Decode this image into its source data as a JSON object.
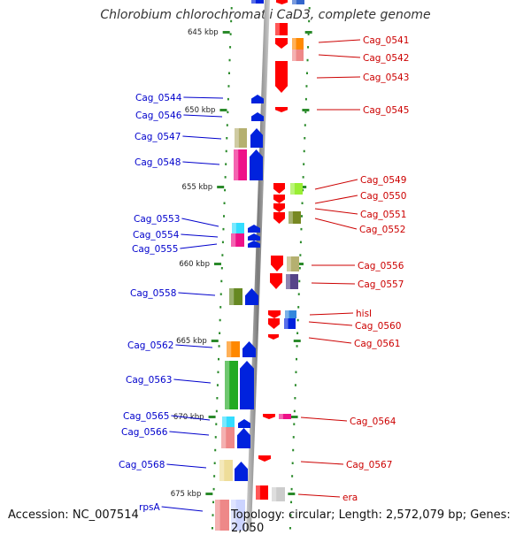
{
  "title": "Chlorobium chlorochromatii CaD3, complete genome",
  "footer": {
    "accession": "Accession: NC_007514",
    "topology": "Topology: circular; Length: 2,572,079 bp; Genes: 2,050"
  },
  "colors": {
    "left_label": "#0000cc",
    "right_label": "#cc0000",
    "axis": "#888888",
    "tick_dots": "#2a8a2a"
  },
  "scale_labels": [
    "645 kbp",
    "650 kbp",
    "655 kbp",
    "660 kbp",
    "665 kbp",
    "670 kbp",
    "675 kbp"
  ],
  "left_genes": [
    "Cag_0544",
    "Cag_0546",
    "Cag_0547",
    "Cag_0548",
    "Cag_0553",
    "Cag_0554",
    "Cag_0555",
    "Cag_0558",
    "Cag_0562",
    "Cag_0563",
    "Cag_0565",
    "Cag_0566",
    "Cag_0568",
    "rpsA"
  ],
  "right_genes": [
    "Cag_0541",
    "Cag_0542",
    "Cag_0543",
    "Cag_0545",
    "Cag_0549",
    "Cag_0550",
    "Cag_0551",
    "Cag_0552",
    "Cag_0556",
    "Cag_0557",
    "hisI",
    "Cag_0560",
    "Cag_0561",
    "Cag_0564",
    "Cag_0567",
    "era"
  ]
}
